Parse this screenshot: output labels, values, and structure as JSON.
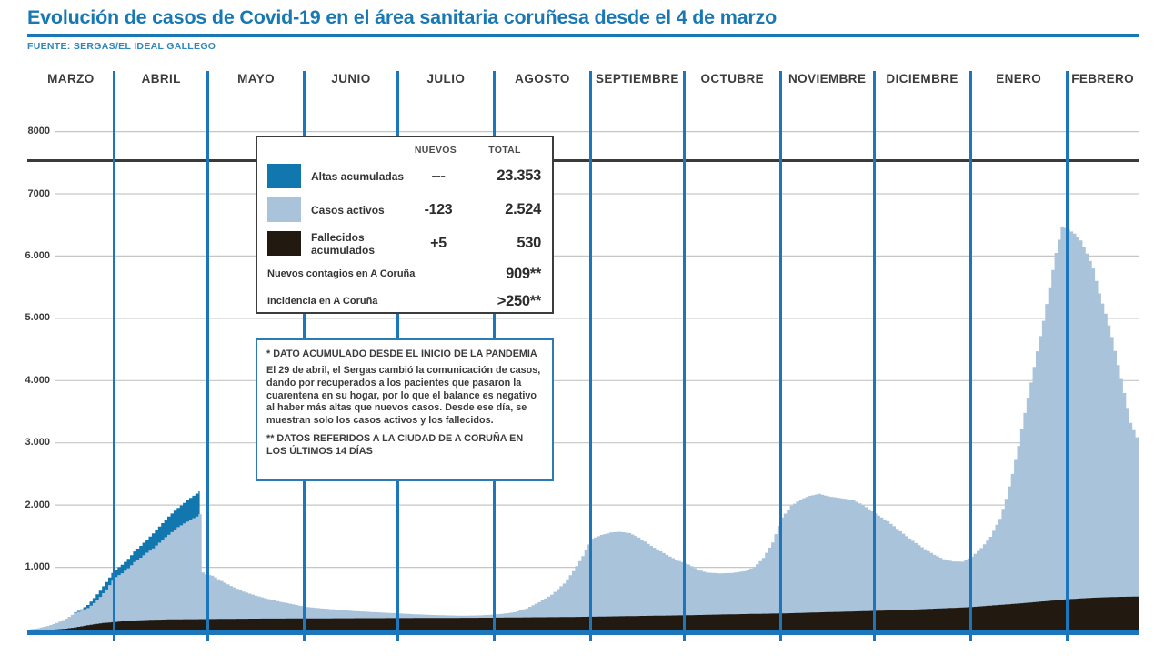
{
  "header": {
    "title": "Evolución de casos de Covid-19 en el área sanitaria coruñesa desde el 4 de marzo",
    "source": "FUENTE: SERGAS/EL IDEAL GALLEGO"
  },
  "months": [
    "MARZO",
    "ABRIL",
    "MAYO",
    "JUNIO",
    "JULIO",
    "AGOSTO",
    "SEPTIEMBRE",
    "OCTUBRE",
    "NOVIEMBRE",
    "DICIEMBRE",
    "ENERO",
    "FEBRERO"
  ],
  "y_ticks": [
    {
      "value": 8000,
      "label": "8000"
    },
    {
      "value": 7000,
      "label": "7000"
    },
    {
      "value": 6000,
      "label": "6.000"
    },
    {
      "value": 5000,
      "label": "5.000"
    },
    {
      "value": 4000,
      "label": "4.000"
    },
    {
      "value": 3000,
      "label": "3.000"
    },
    {
      "value": 2000,
      "label": "2.000"
    },
    {
      "value": 1000,
      "label": "1.000"
    }
  ],
  "legend": {
    "col_nuevos": "NUEVOS",
    "col_total": "TOTAL",
    "rows": [
      {
        "label": "Altas acumuladas",
        "nuevos": "---",
        "total": "23.353",
        "color": "#1277ae"
      },
      {
        "label": "Casos activos",
        "nuevos": "-123",
        "total": "2.524",
        "color": "#a9c3da"
      },
      {
        "label": "Fallecidos acumulados",
        "nuevos": "+5",
        "total": "530",
        "color": "#221910"
      }
    ],
    "extra_rows": [
      {
        "label": "Nuevos contagios en A Coruña",
        "total": "909**"
      },
      {
        "label": "Incidencia en A Coruña",
        "total": ">250**"
      }
    ]
  },
  "notes": {
    "asterisk": "* DATO ACUMULADO DESDE EL INICIO DE LA PANDEMIA",
    "paragraph": "El 29 de abril, el Sergas cambió la comunicación de casos, dando por recuperados a los pacientes que pasaron la cuarentena en su hogar, por lo que el balance es negativo al haber más altas que nuevos casos. Desde ese día, se muestran solo los casos activos y los fallecidos.",
    "double_asterisk": "** DATOS REFERIDOS A LA CIUDAD DE A CORUÑA EN LOS ÚLTIMOS 14 DÍAS"
  },
  "colors": {
    "accent_blue": "#1b76bb",
    "title_blue": "#1878b4",
    "altas_fill": "#1277ae",
    "activos_fill": "#a9c3da",
    "fallecidos_fill": "#221910",
    "gridline": "#c6c6c6",
    "band_rule": "#3a3a3a"
  },
  "chart_data": {
    "type": "area",
    "stacked": true,
    "x_unit": "days since 4 March",
    "x_range": [
      0,
      357
    ],
    "ylim": [
      0,
      8000
    ],
    "grid": true,
    "gridline_values": [
      1000,
      2000,
      3000,
      4000,
      5000,
      6000,
      7000,
      8000
    ],
    "month_edges_t": [
      0,
      28,
      58,
      89,
      119,
      150,
      181,
      211,
      242,
      272,
      303,
      334,
      357
    ],
    "series": [
      {
        "name": "Altas acumuladas (top of cumulative stack, shown Mar–29 Apr only)",
        "color": "#1277ae",
        "points": [
          [
            15,
            275
          ],
          [
            17,
            325
          ],
          [
            19,
            395
          ],
          [
            21,
            505
          ],
          [
            23,
            625
          ],
          [
            25,
            765
          ],
          [
            27,
            910
          ],
          [
            28,
            965
          ],
          [
            30,
            1040
          ],
          [
            32,
            1135
          ],
          [
            34,
            1255
          ],
          [
            36,
            1345
          ],
          [
            38,
            1445
          ],
          [
            40,
            1545
          ],
          [
            42,
            1655
          ],
          [
            44,
            1765
          ],
          [
            46,
            1865
          ],
          [
            48,
            1955
          ],
          [
            50,
            2035
          ],
          [
            52,
            2115
          ],
          [
            54,
            2185
          ],
          [
            55.4,
            2235
          ]
        ]
      },
      {
        "name": "Casos activos (stacked on fallecidos)",
        "color": "#a9c3da",
        "points": [
          [
            0,
            0
          ],
          [
            3,
            20
          ],
          [
            6,
            55
          ],
          [
            9,
            105
          ],
          [
            12,
            175
          ],
          [
            15,
            265
          ],
          [
            17,
            305
          ],
          [
            19,
            345
          ],
          [
            21,
            425
          ],
          [
            23,
            525
          ],
          [
            25,
            645
          ],
          [
            27,
            785
          ],
          [
            28,
            845
          ],
          [
            30,
            905
          ],
          [
            32,
            985
          ],
          [
            34,
            1085
          ],
          [
            36,
            1155
          ],
          [
            38,
            1235
          ],
          [
            40,
            1305
          ],
          [
            42,
            1395
          ],
          [
            44,
            1485
          ],
          [
            46,
            1565
          ],
          [
            48,
            1645
          ],
          [
            50,
            1705
          ],
          [
            52,
            1765
          ],
          [
            54,
            1815
          ],
          [
            55,
            1855
          ],
          [
            55.4,
            935
          ],
          [
            57,
            885
          ],
          [
            59,
            865
          ],
          [
            62,
            780
          ],
          [
            65,
            700
          ],
          [
            69,
            610
          ],
          [
            73,
            545
          ],
          [
            77,
            490
          ],
          [
            81,
            445
          ],
          [
            85,
            405
          ],
          [
            89,
            365
          ],
          [
            94,
            340
          ],
          [
            99,
            320
          ],
          [
            104,
            300
          ],
          [
            109,
            285
          ],
          [
            114,
            272
          ],
          [
            119,
            260
          ],
          [
            124,
            246
          ],
          [
            129,
            236
          ],
          [
            134,
            228
          ],
          [
            139,
            223
          ],
          [
            144,
            226
          ],
          [
            148,
            236
          ],
          [
            152,
            252
          ],
          [
            156,
            278
          ],
          [
            160,
            340
          ],
          [
            164,
            440
          ],
          [
            168,
            560
          ],
          [
            172,
            740
          ],
          [
            175,
            940
          ],
          [
            178,
            1180
          ],
          [
            181,
            1460
          ],
          [
            184,
            1520
          ],
          [
            187,
            1560
          ],
          [
            190,
            1570
          ],
          [
            193,
            1550
          ],
          [
            196,
            1480
          ],
          [
            200,
            1345
          ],
          [
            205,
            1200
          ],
          [
            208,
            1120
          ],
          [
            212,
            1045
          ],
          [
            215,
            960
          ],
          [
            218,
            915
          ],
          [
            222,
            903
          ],
          [
            226,
            910
          ],
          [
            230,
            940
          ],
          [
            233,
            1000
          ],
          [
            236,
            1150
          ],
          [
            239,
            1400
          ],
          [
            242,
            1800
          ],
          [
            245,
            1990
          ],
          [
            248,
            2090
          ],
          [
            251,
            2150
          ],
          [
            254,
            2180
          ],
          [
            257,
            2140
          ],
          [
            261,
            2110
          ],
          [
            265,
            2080
          ],
          [
            268,
            2000
          ],
          [
            271,
            1900
          ],
          [
            273,
            1830
          ],
          [
            276,
            1740
          ],
          [
            279,
            1620
          ],
          [
            282,
            1500
          ],
          [
            285,
            1390
          ],
          [
            288,
            1290
          ],
          [
            291,
            1200
          ],
          [
            294,
            1130
          ],
          [
            297,
            1095
          ],
          [
            300,
            1090
          ],
          [
            303,
            1170
          ],
          [
            306,
            1310
          ],
          [
            309,
            1490
          ],
          [
            312,
            1780
          ],
          [
            314,
            2100
          ],
          [
            316,
            2500
          ],
          [
            318,
            2950
          ],
          [
            320,
            3480
          ],
          [
            322,
            3970
          ],
          [
            324,
            4470
          ],
          [
            326,
            4960
          ],
          [
            328,
            5500
          ],
          [
            330,
            6050
          ],
          [
            332,
            6475
          ],
          [
            334,
            6430
          ],
          [
            336,
            6360
          ],
          [
            338,
            6250
          ],
          [
            340,
            6040
          ],
          [
            342,
            5800
          ],
          [
            344,
            5400
          ],
          [
            346,
            5075
          ],
          [
            348,
            4700
          ],
          [
            350,
            4250
          ],
          [
            352,
            3800
          ],
          [
            354,
            3320
          ],
          [
            356,
            3090
          ],
          [
            357,
            3055
          ]
        ]
      },
      {
        "name": "Fallecidos acumulados",
        "color": "#221910",
        "points": [
          [
            8,
            0
          ],
          [
            12,
            15
          ],
          [
            15,
            35
          ],
          [
            18,
            60
          ],
          [
            21,
            85
          ],
          [
            24,
            105
          ],
          [
            27,
            118
          ],
          [
            30,
            132
          ],
          [
            33,
            142
          ],
          [
            36,
            150
          ],
          [
            40,
            158
          ],
          [
            45,
            163
          ],
          [
            50,
            166
          ],
          [
            56,
            168
          ],
          [
            64,
            172
          ],
          [
            74,
            176
          ],
          [
            85,
            178
          ],
          [
            95,
            180
          ],
          [
            105,
            182
          ],
          [
            119,
            184
          ],
          [
            130,
            186
          ],
          [
            140,
            188
          ],
          [
            150,
            191
          ],
          [
            160,
            196
          ],
          [
            170,
            199
          ],
          [
            181,
            206
          ],
          [
            190,
            213
          ],
          [
            200,
            221
          ],
          [
            211,
            229
          ],
          [
            220,
            239
          ],
          [
            230,
            249
          ],
          [
            242,
            259
          ],
          [
            252,
            273
          ],
          [
            262,
            287
          ],
          [
            273,
            302
          ],
          [
            280,
            314
          ],
          [
            287,
            327
          ],
          [
            293,
            340
          ],
          [
            298,
            350
          ],
          [
            303,
            362
          ],
          [
            307,
            377
          ],
          [
            311,
            392
          ],
          [
            315,
            407
          ],
          [
            319,
            422
          ],
          [
            323,
            440
          ],
          [
            327,
            457
          ],
          [
            331,
            474
          ],
          [
            334,
            488
          ],
          [
            338,
            500
          ],
          [
            342,
            511
          ],
          [
            346,
            519
          ],
          [
            350,
            525
          ],
          [
            354,
            528
          ],
          [
            357,
            530
          ]
        ]
      }
    ]
  }
}
